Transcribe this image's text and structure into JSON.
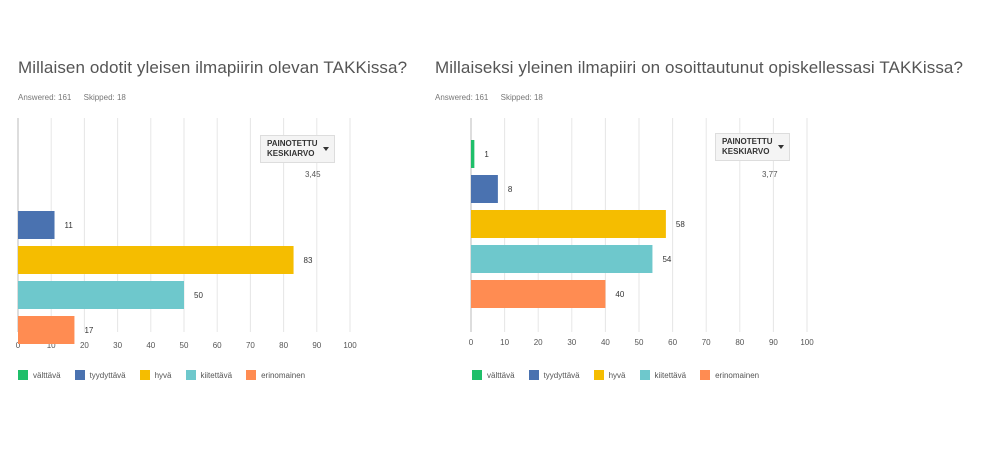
{
  "charts": [
    {
      "title": "Millaisen odotit yleisen ilmapiirin olevan TAKKissa?",
      "answered": "Answered: 161",
      "skipped": "Skipped: 18",
      "avg_button": [
        "PAINOTETTU",
        "KESKIARVO"
      ],
      "avg_value": "3,45"
    },
    {
      "title": "Millaiseksi yleinen ilmapiiri on osoittautunut opiskellessasi TAKKissa?",
      "answered": "Answered: 161",
      "skipped": "Skipped: 18",
      "avg_button": [
        "PAINOTETTU",
        "KESKIARVO"
      ],
      "avg_value": "3,77"
    }
  ],
  "chart_data": [
    {
      "type": "bar",
      "orientation": "horizontal",
      "title": "Millaisen odotit yleisen ilmapiirin olevan TAKKissa?",
      "categories": [
        "välttävä",
        "tyydyttävä",
        "hyvä",
        "kiitettävä",
        "erinomainen"
      ],
      "values": [
        0,
        11,
        83,
        50,
        17
      ],
      "labels": [
        "",
        "11",
        "83",
        "50",
        "17"
      ],
      "colors": [
        "#1fbf6a",
        "#4a72b0",
        "#f5bd00",
        "#6ec8cc",
        "#ff8c52"
      ],
      "xlim": [
        0,
        100
      ],
      "xticks": [
        "0",
        "10",
        "20",
        "30",
        "40",
        "50",
        "60",
        "70",
        "80",
        "90",
        "100"
      ],
      "grid": true,
      "legend_position": "bottom"
    },
    {
      "type": "bar",
      "orientation": "horizontal",
      "title": "Millaiseksi yleinen ilmapiiri on osoittautunut opiskellessasi TAKKissa?",
      "categories": [
        "välttävä",
        "tyydyttävä",
        "hyvä",
        "kiitettävä",
        "erinomainen"
      ],
      "values": [
        1,
        8,
        58,
        54,
        40
      ],
      "labels": [
        "1",
        "8",
        "58",
        "54",
        "40"
      ],
      "colors": [
        "#1fbf6a",
        "#4a72b0",
        "#f5bd00",
        "#6ec8cc",
        "#ff8c52"
      ],
      "xlim": [
        0,
        100
      ],
      "xticks": [
        "0",
        "10",
        "20",
        "30",
        "40",
        "50",
        "60",
        "70",
        "80",
        "90",
        "100"
      ],
      "grid": true,
      "legend_position": "bottom"
    }
  ]
}
